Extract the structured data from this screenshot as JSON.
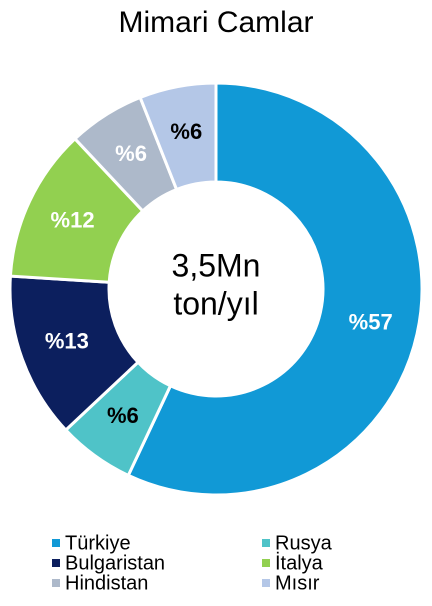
{
  "chart_data": {
    "type": "donut",
    "title": "Mimari Camlar",
    "center_label": [
      "3,5Mn",
      "ton/yıl"
    ],
    "categories": [
      "Türkiye",
      "Rusya",
      "Bulgaristan",
      "İtalya",
      "Hindistan",
      "Mısır"
    ],
    "values": [
      57,
      6,
      13,
      12,
      6,
      6
    ],
    "value_labels": [
      "%57",
      "%6",
      "%13",
      "%12",
      "%6",
      "%6"
    ],
    "colors": [
      "#1199d6",
      "#4fc3c8",
      "#0c1f5e",
      "#92d050",
      "#adb9ca",
      "#b4c7e7"
    ],
    "label_colors": [
      "#ffffff",
      "#000000",
      "#ffffff",
      "#ffffff",
      "#ffffff",
      "#000000"
    ]
  }
}
